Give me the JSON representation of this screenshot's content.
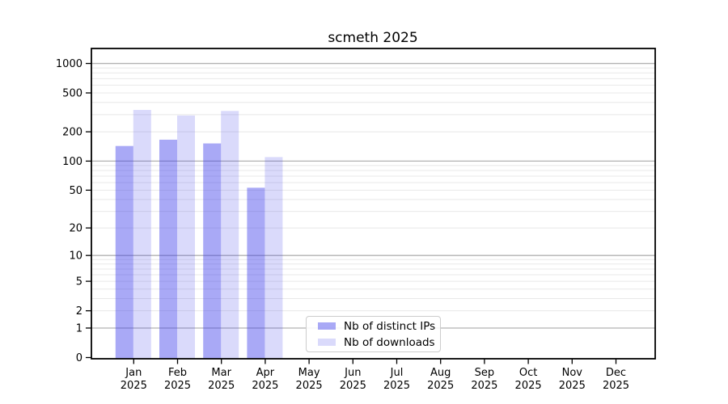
{
  "figure": {
    "background": "#ffffff"
  },
  "chart_data": {
    "type": "bar",
    "title": "scmeth 2025",
    "months": [
      "Jan",
      "Feb",
      "Mar",
      "Apr",
      "May",
      "Jun",
      "Jul",
      "Aug",
      "Sep",
      "Oct",
      "Nov",
      "Dec"
    ],
    "year_label": "2025",
    "series": [
      {
        "name": "Nb of distinct IPs",
        "fill": "rgba(60,60,235,0.44)",
        "values": [
          143,
          166,
          152,
          53,
          0,
          0,
          0,
          0,
          0,
          0,
          0,
          0
        ]
      },
      {
        "name": "Nb of downloads",
        "fill": "rgba(60,60,235,0.19)",
        "values": [
          335,
          294,
          327,
          110,
          0,
          0,
          0,
          0,
          0,
          0,
          0,
          0
        ]
      }
    ],
    "y_scale": "log10(value+1)",
    "y_ticks": [
      0,
      1,
      2,
      5,
      10,
      20,
      50,
      100,
      200,
      500,
      1000
    ],
    "ylim": [
      0,
      1400
    ],
    "grid": {
      "major_decades": [
        1,
        10,
        100,
        1000
      ],
      "minor_multiples": [
        2,
        3,
        4,
        5,
        6,
        7,
        8,
        9
      ],
      "major_color": "#b2b2b2",
      "minor_color": "#e8e8e8"
    },
    "axes": {
      "spine_color": "#000000",
      "tick_color": "#000000"
    },
    "legend": {
      "position": "lower center"
    }
  }
}
